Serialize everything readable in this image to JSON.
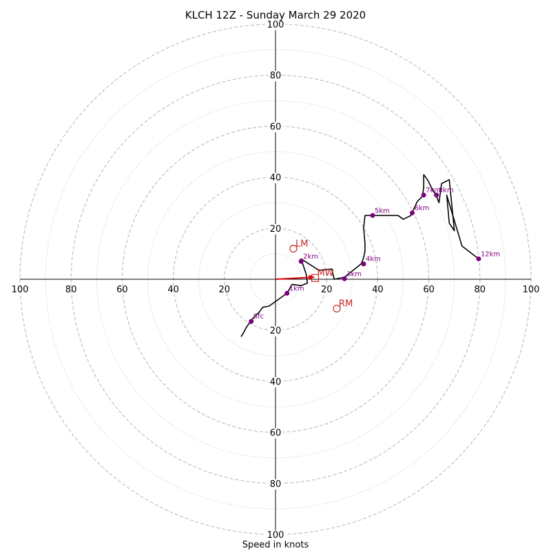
{
  "chart_data": {
    "type": "scatter",
    "title": "KLCH 12Z - Sunday March 29 2020",
    "xlabel": "Speed in knots",
    "ylabel": "",
    "xlim": [
      -100,
      100
    ],
    "ylim": [
      -100,
      100
    ],
    "rings_dashed": [
      20,
      40,
      60,
      80,
      100
    ],
    "rings_dotted": [
      10,
      30,
      50,
      70,
      90
    ],
    "axis_ticks": [
      "100",
      "80",
      "60",
      "40",
      "20",
      "20",
      "40",
      "60",
      "80",
      "100"
    ],
    "hodograph_line": {
      "color": "#000000",
      "u": [
        -13.5,
        -12.5,
        -11.5,
        -9.5,
        -8.5,
        -6.5,
        -5.0,
        -2.5,
        4.5,
        6.5,
        10,
        12.5,
        12,
        10,
        17,
        22,
        23,
        27,
        33.5,
        34.5,
        35,
        35,
        34.5,
        35,
        38,
        42,
        48,
        50,
        53,
        55.5,
        57.5,
        58,
        58,
        59.5,
        61,
        63,
        64,
        65,
        68,
        70,
        68,
        67,
        73,
        79.5
      ],
      "v": [
        -22.5,
        -21,
        -19,
        -16,
        -15,
        -13,
        -11,
        -10.5,
        -5.5,
        -2,
        -2.5,
        -1.5,
        2,
        8,
        3.5,
        4,
        0,
        0.8,
        6,
        8.5,
        11,
        14,
        20,
        25,
        25,
        25,
        25,
        23.5,
        25,
        30.5,
        32.5,
        36,
        41,
        39,
        36,
        32.5,
        30,
        37.5,
        39,
        19,
        22,
        33,
        13,
        8
      ]
    },
    "height_markers": [
      {
        "label": "Sfc",
        "u": -9.5,
        "v": -16.5
      },
      {
        "label": "1km",
        "u": 4.5,
        "v": -5.5
      },
      {
        "label": "2km",
        "u": 10,
        "v": 7
      },
      {
        "label": "3km",
        "u": 27,
        "v": 0.2
      },
      {
        "label": "4km",
        "u": 34.5,
        "v": 6
      },
      {
        "label": "5km",
        "u": 38,
        "v": 25
      },
      {
        "label": "6km",
        "u": 53.5,
        "v": 26
      },
      {
        "label": "7km",
        "u": 58,
        "v": 33
      },
      {
        "label": "8km",
        "u": 63,
        "v": 33
      },
      {
        "label": "12km",
        "u": 79.5,
        "v": 8
      }
    ],
    "motion_markers": [
      {
        "label": "LM",
        "u": 7,
        "v": 12,
        "shape": "circle"
      },
      {
        "label": "RM",
        "u": 24,
        "v": -11.5,
        "shape": "circle"
      },
      {
        "label": "MW",
        "u": 15.5,
        "v": 0.5,
        "shape": "square"
      }
    ],
    "arrow": {
      "u0": 0,
      "v0": 0,
      "u1": 15.5,
      "v1": 0.8
    },
    "colors": {
      "ring": "#bfbfbf",
      "axis": "#000000",
      "height_marker": "#800080",
      "motion_marker": "#cc2222",
      "arrow": "#dd0000",
      "line": "#000000"
    }
  }
}
